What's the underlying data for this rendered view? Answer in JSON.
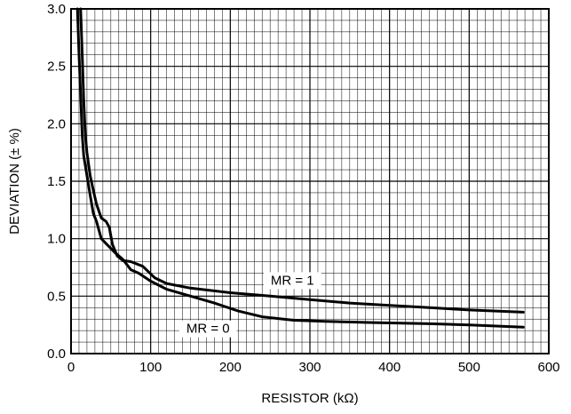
{
  "chart_data": {
    "type": "line",
    "title": "",
    "xlabel": "RESISTOR (kΩ)",
    "ylabel": "DEVIATION (± %)",
    "xlim": [
      0,
      600
    ],
    "ylim": [
      0,
      3.0
    ],
    "x_ticks": [
      "0",
      "100",
      "200",
      "300",
      "400",
      "500",
      "600"
    ],
    "y_ticks": [
      "0.0",
      "0.5",
      "1.0",
      "1.5",
      "2.0",
      "2.5",
      "3.0"
    ],
    "grid": true,
    "series": [
      {
        "name": "MR = 1",
        "x": [
          12,
          14,
          16,
          18,
          20,
          24,
          28,
          32,
          38,
          44,
          48,
          52,
          58,
          65,
          75,
          90,
          105,
          120,
          150,
          200,
          250,
          300,
          350,
          400,
          450,
          500,
          568
        ],
        "y": [
          3.0,
          2.6,
          2.2,
          1.9,
          1.75,
          1.55,
          1.42,
          1.3,
          1.18,
          1.15,
          1.1,
          0.95,
          0.85,
          0.81,
          0.8,
          0.76,
          0.66,
          0.61,
          0.57,
          0.53,
          0.5,
          0.47,
          0.44,
          0.42,
          0.4,
          0.38,
          0.36
        ]
      },
      {
        "name": "MR = 0",
        "x": [
          8,
          10,
          12,
          14,
          16,
          20,
          24,
          28,
          32,
          38,
          45,
          55,
          65,
          75,
          85,
          100,
          120,
          150,
          180,
          210,
          240,
          280,
          320,
          380,
          450,
          500,
          568
        ],
        "y": [
          3.0,
          2.6,
          2.25,
          1.9,
          1.72,
          1.55,
          1.38,
          1.22,
          1.15,
          1.0,
          0.95,
          0.88,
          0.82,
          0.73,
          0.7,
          0.63,
          0.56,
          0.5,
          0.44,
          0.37,
          0.32,
          0.29,
          0.28,
          0.27,
          0.26,
          0.25,
          0.23
        ]
      }
    ],
    "series_labels": [
      "MR = 1",
      "MR = 0"
    ]
  }
}
